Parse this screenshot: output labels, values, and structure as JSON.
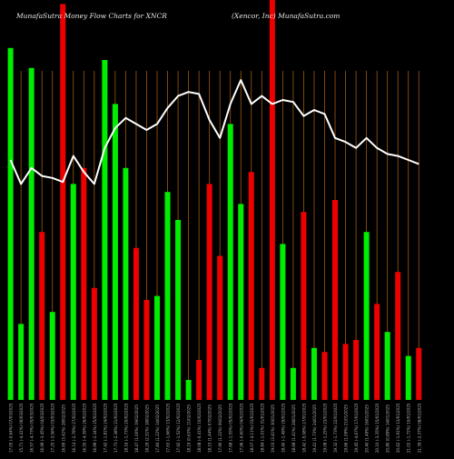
{
  "header": {
    "title_left": "MunafaSutra  Money Flow  Charts for XNCR",
    "title_right": "(Xencor,  Inc)  MunafaSutra.com"
  },
  "colors": {
    "background": "#000000",
    "up": "#00ee00",
    "down": "#ee0000",
    "gridline": "#a05a14",
    "line": "#ffffff",
    "label": "#bbbbbb"
  },
  "chart_data": {
    "type": "bar",
    "title": "MunafaSutra  Money Flow  Charts for XNCR",
    "ylim": [
      0,
      100
    ],
    "grid": true,
    "categories": [
      "17.05 (-0.64%) 07/03/2025",
      "15.71 (-4.41%) 06/03/2025",
      "16.57 (-4.73%) 05/03/2025",
      "16.99 (-3.45%) 04/03/2025",
      "17.25 (-3.56%) 03/03/2025",
      "16.69 (3.42%) 28/02/2025",
      "16.14 (-2.78%) 27/02/2025",
      "16.55 (-4.39%) 26/02/2025",
      "16.99 (-2.34%) 25/02/2025",
      "17.42 (-1.81%) 24/02/2025",
      "17.73 (-2.38%) 21/02/2025",
      "18.16 (-1.73%) 20/02/2025",
      "18.47 (1.00%) 19/02/2025",
      "18.29 (2.51%) 18/02/2025",
      "17.84 (1.22%) 14/02/2025",
      "17.63 (-1.66%) 13/02/2025",
      "17.92 (-1.52%) 12/02/2025",
      "18.19 (0.63%) 11/02/2025",
      "18.08 (-0.41%) 10/02/2025",
      "18.15 (1.44%) 07/02/2025",
      "17.90 (1.22%) 06/02/2025",
      "17.68 (-1.55%) 05/02/2025",
      "17.96 (-0.60%) 04/02/2025",
      "18.07 (-4.11%) 03/02/2025",
      "18.84 (-1.01%) 31/01/2025",
      "19.03 (3.41%) 30/01/2025",
      "18.40 (-1.49%) 29/01/2025",
      "18.68 (1.41%) 28/01/2025",
      "18.42 (-5.08%) 27/01/2025",
      "19.41 (1.73%) 24/01/2025",
      "19.08 (-1.25%) 23/01/2025",
      "19.32 (-1.73%) 22/01/2025",
      "19.66 (1.09%) 21/01/2025",
      "19.45 (-4.67%) 17/01/2025",
      "20.40 (1.49%) 16/01/2025",
      "20.10 (-3.35%) 15/01/2025",
      "20.80 (0.89%) 14/01/2025",
      "20.62 (-1.91%) 13/01/2025",
      "21.02 (-1.72%) 10/01/2025",
      "21.39 (-2.37%) 08/01/2025"
    ],
    "bars": [
      {
        "value": 88,
        "dir": "up"
      },
      {
        "value": 19,
        "dir": "up"
      },
      {
        "value": 83,
        "dir": "up"
      },
      {
        "value": 42,
        "dir": "down"
      },
      {
        "value": 22,
        "dir": "up"
      },
      {
        "value": 99,
        "dir": "down"
      },
      {
        "value": 54,
        "dir": "up"
      },
      {
        "value": 58,
        "dir": "down"
      },
      {
        "value": 28,
        "dir": "down"
      },
      {
        "value": 85,
        "dir": "up"
      },
      {
        "value": 74,
        "dir": "up"
      },
      {
        "value": 58,
        "dir": "up"
      },
      {
        "value": 38,
        "dir": "down"
      },
      {
        "value": 25,
        "dir": "down"
      },
      {
        "value": 26,
        "dir": "up"
      },
      {
        "value": 52,
        "dir": "up"
      },
      {
        "value": 45,
        "dir": "up"
      },
      {
        "value": 5,
        "dir": "up"
      },
      {
        "value": 10,
        "dir": "down"
      },
      {
        "value": 54,
        "dir": "down"
      },
      {
        "value": 36,
        "dir": "down"
      },
      {
        "value": 69,
        "dir": "up"
      },
      {
        "value": 49,
        "dir": "up"
      },
      {
        "value": 57,
        "dir": "down"
      },
      {
        "value": 8,
        "dir": "down"
      },
      {
        "value": 100,
        "dir": "down"
      },
      {
        "value": 39,
        "dir": "up"
      },
      {
        "value": 8,
        "dir": "up"
      },
      {
        "value": 47,
        "dir": "down"
      },
      {
        "value": 13,
        "dir": "up"
      },
      {
        "value": 12,
        "dir": "down"
      },
      {
        "value": 50,
        "dir": "down"
      },
      {
        "value": 14,
        "dir": "down"
      },
      {
        "value": 15,
        "dir": "down"
      },
      {
        "value": 42,
        "dir": "up"
      },
      {
        "value": 24,
        "dir": "down"
      },
      {
        "value": 17,
        "dir": "up"
      },
      {
        "value": 32,
        "dir": "down"
      },
      {
        "value": 11,
        "dir": "up"
      },
      {
        "value": 13,
        "dir": "down"
      }
    ],
    "line_values": [
      60,
      54,
      58,
      56,
      55.5,
      54.5,
      61,
      57,
      54,
      63,
      68,
      70.5,
      69,
      67.5,
      69,
      73,
      76,
      77,
      76.5,
      70,
      65.5,
      74,
      80,
      74,
      76,
      74,
      75,
      74.5,
      71,
      72.5,
      71.5,
      65.5,
      64.5,
      63,
      65.5,
      63,
      61.5,
      61,
      60,
      59
    ]
  }
}
